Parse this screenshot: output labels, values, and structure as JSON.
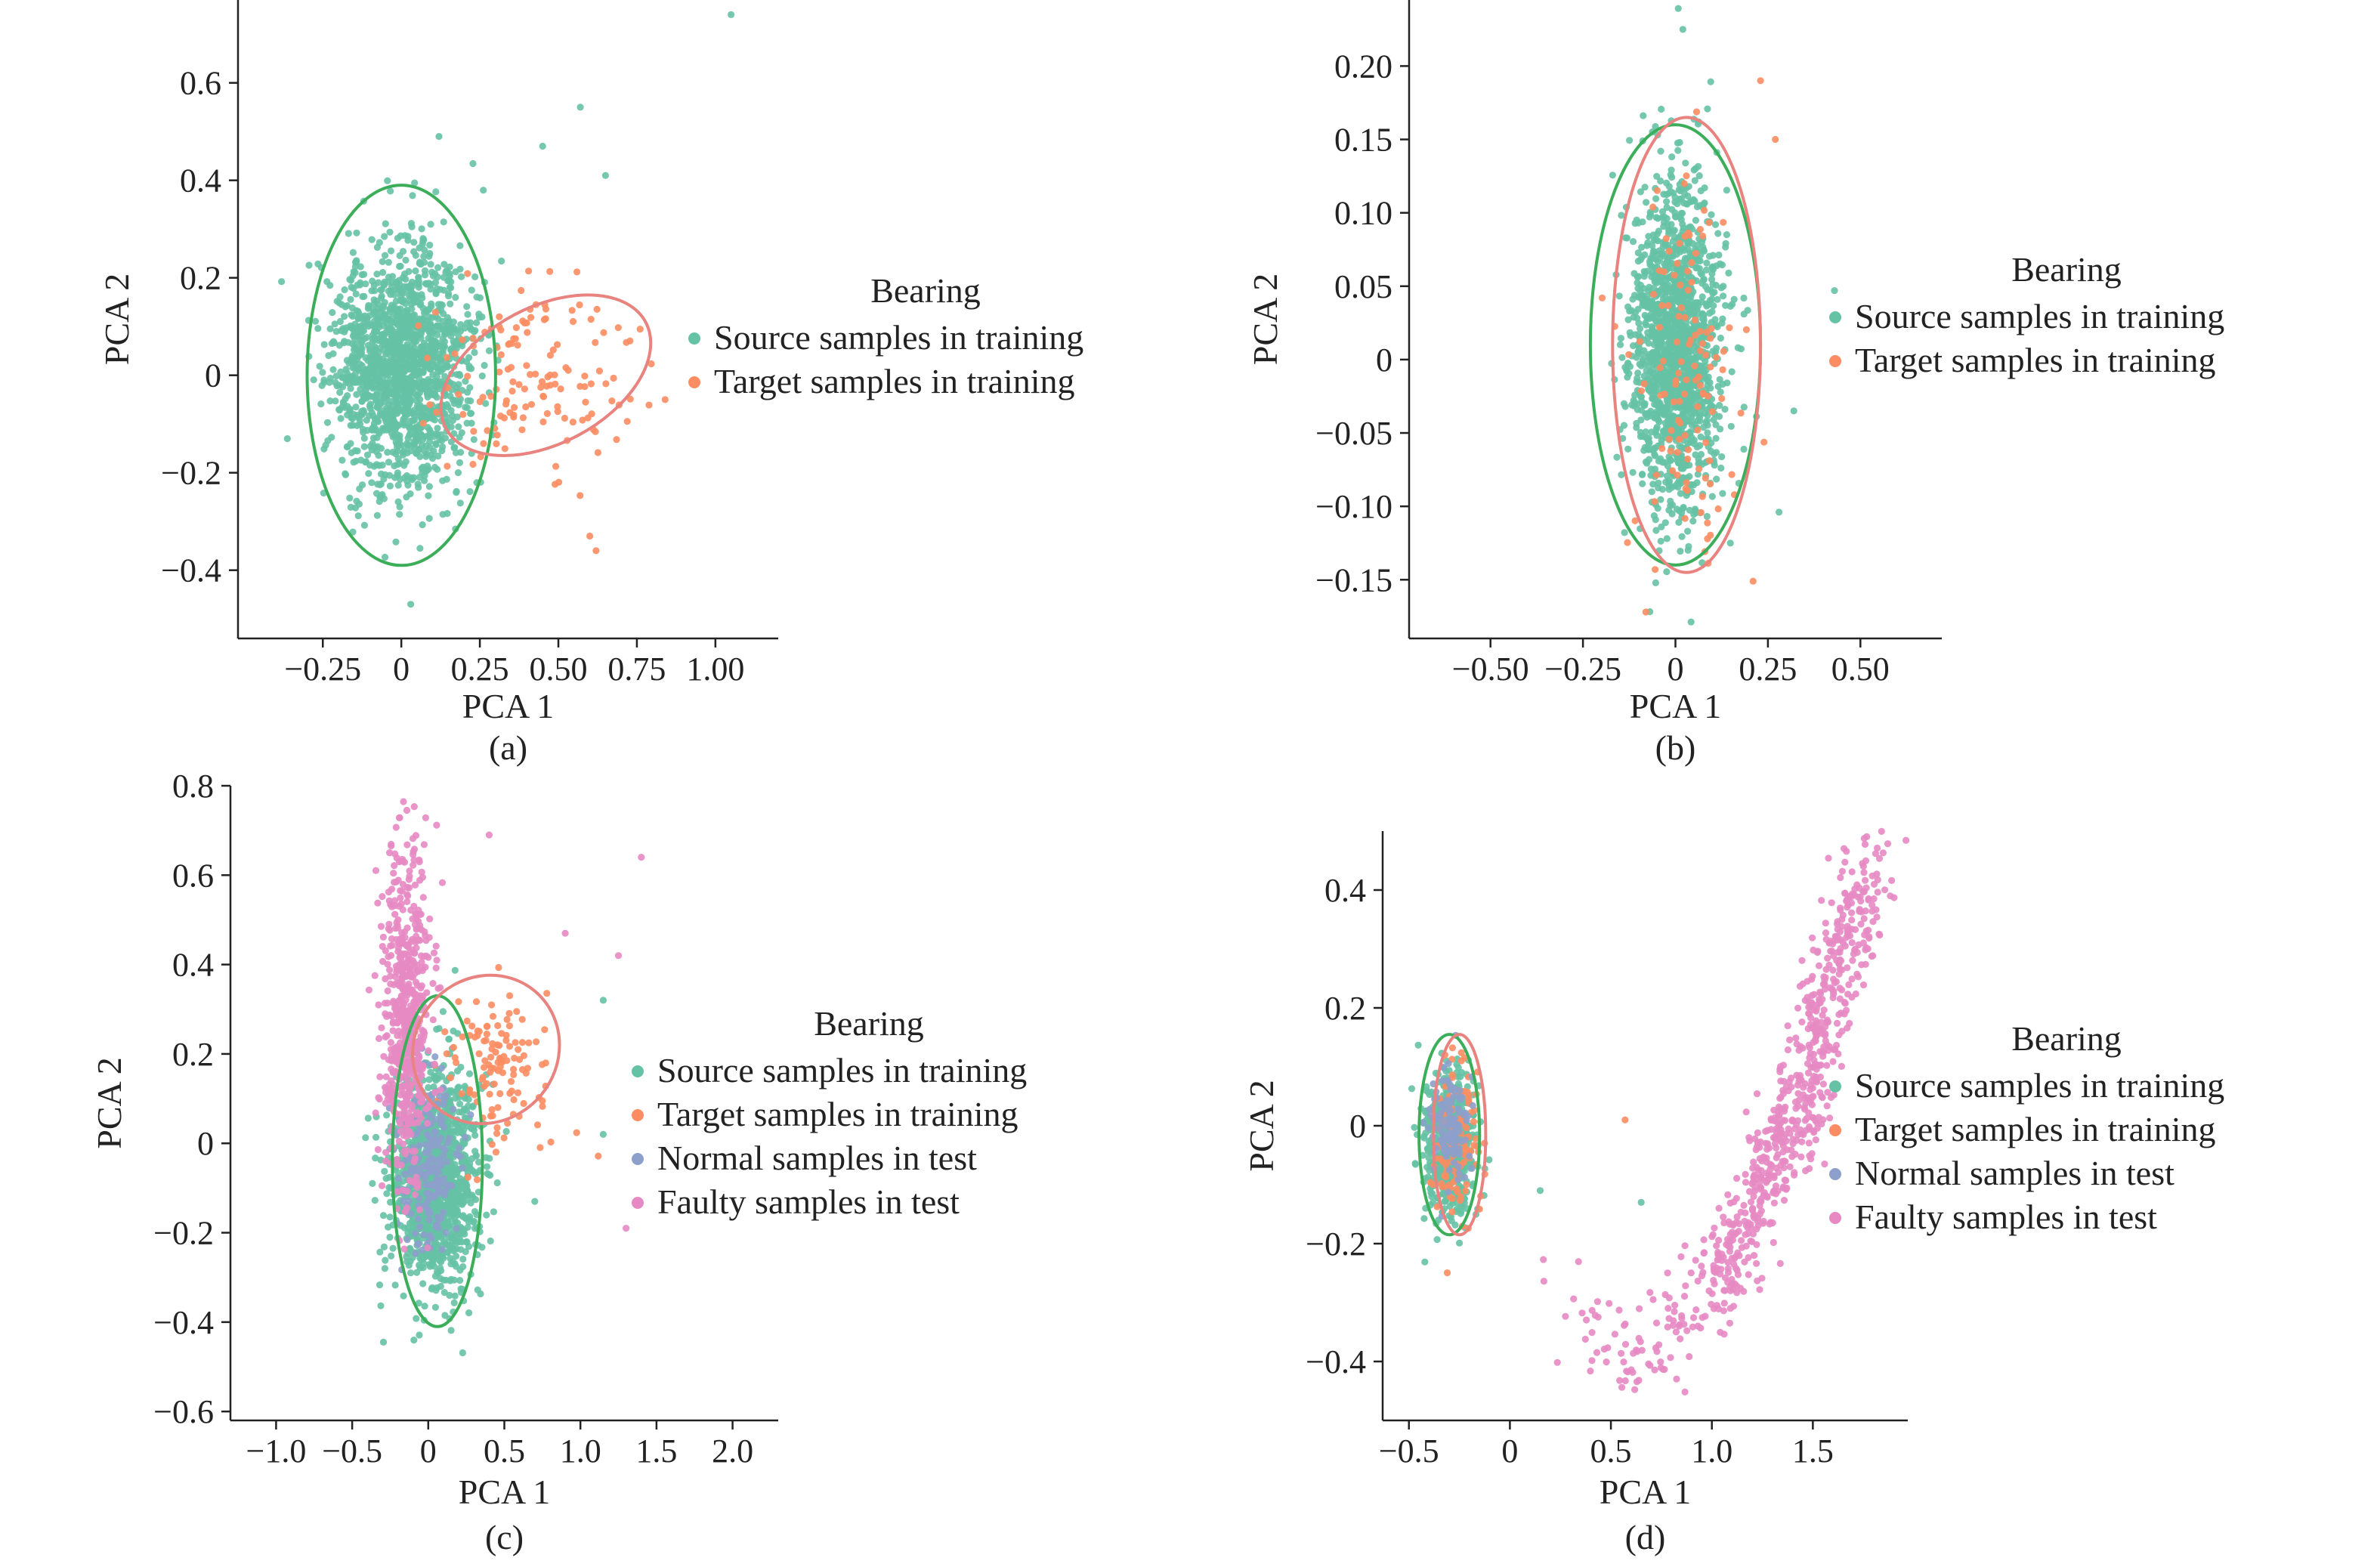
{
  "figure": {
    "colors": {
      "source": "#66c2a5",
      "target": "#fc8d62",
      "normal": "#8da0cb",
      "faulty": "#e78ac3",
      "source_ellipse": "#3cae5a",
      "target_ellipse": "#e8837f",
      "axis": "#222222"
    },
    "font_note": ""
  },
  "chart_data": [
    {
      "id": "a",
      "type": "scatter",
      "caption": "(a)",
      "xlabel": "PCA 1",
      "ylabel": "PCA 2",
      "xlim": [
        -0.52,
        1.2
      ],
      "ylim": [
        -0.54,
        0.77
      ],
      "xticks": [
        -0.25,
        0,
        0.25,
        0.5,
        0.75,
        1.0
      ],
      "xtick_labels": [
        "−0.25",
        "0",
        "0.25",
        "0.50",
        "0.75",
        "1.00"
      ],
      "yticks": [
        -0.4,
        -0.2,
        0,
        0.2,
        0.4,
        0.6
      ],
      "ytick_labels": [
        "−0.4",
        "−0.2",
        "0",
        "0.2",
        "0.4",
        "0.6"
      ],
      "legend": {
        "title": "Bearing",
        "entries": [
          "Source samples in training",
          "Target samples in training"
        ],
        "placement": "right"
      },
      "series": [
        {
          "name": "Source samples in training",
          "color_key": "source",
          "center": [
            0.0,
            0.02
          ],
          "spread": [
            0.11,
            0.12
          ],
          "count": 1600,
          "seed": 11
        },
        {
          "name": "Target samples in training",
          "color_key": "target",
          "center": [
            0.42,
            0.0
          ],
          "spread": [
            0.16,
            0.09
          ],
          "count": 140,
          "seed": 12
        }
      ],
      "outliers": [
        {
          "series": 0,
          "x": 1.05,
          "y": 0.74
        },
        {
          "series": 0,
          "x": 0.57,
          "y": 0.55
        },
        {
          "series": 0,
          "x": 0.65,
          "y": 0.41
        },
        {
          "series": 0,
          "x": 0.12,
          "y": 0.49
        },
        {
          "series": 0,
          "x": 0.45,
          "y": 0.47
        },
        {
          "series": 0,
          "x": 0.03,
          "y": -0.47
        },
        {
          "series": 1,
          "x": 0.62,
          "y": -0.36
        },
        {
          "series": 1,
          "x": 0.6,
          "y": -0.33
        },
        {
          "series": 1,
          "x": 0.84,
          "y": -0.05
        }
      ],
      "ellipses": [
        {
          "color_key": "source_ellipse",
          "cx": 0.0,
          "cy": 0.0,
          "rx": 0.3,
          "ry": 0.39,
          "angle": 0
        },
        {
          "color_key": "target_ellipse",
          "cx": 0.46,
          "cy": 0.0,
          "rx": 0.36,
          "ry": 0.14,
          "angle": 28
        }
      ]
    },
    {
      "id": "b",
      "type": "scatter",
      "caption": "(b)",
      "xlabel": "PCA 1",
      "ylabel": "PCA 2",
      "xlim": [
        -0.72,
        0.72
      ],
      "ylim": [
        -0.19,
        0.245
      ],
      "xticks": [
        -0.5,
        -0.25,
        0,
        0.25,
        0.5
      ],
      "xtick_labels": [
        "−0.50",
        "−0.25",
        "0",
        "0.25",
        "0.50"
      ],
      "yticks": [
        -0.15,
        -0.1,
        -0.05,
        0,
        0.05,
        0.1,
        0.15,
        0.2
      ],
      "ytick_labels": [
        "−0.15",
        "−0.10",
        "−0.05",
        "0",
        "0.05",
        "0.10",
        "0.15",
        "0.20"
      ],
      "legend": {
        "title": "Bearing",
        "entries": [
          "Source samples in training",
          "Target samples in training"
        ],
        "placement": "right"
      },
      "series": [
        {
          "name": "Source samples in training",
          "color_key": "source",
          "center": [
            0.0,
            0.01
          ],
          "spread": [
            0.06,
            0.055
          ],
          "count": 1600,
          "seed": 21
        },
        {
          "name": "Target samples in training",
          "color_key": "target",
          "center": [
            0.02,
            0.0
          ],
          "spread": [
            0.07,
            0.06
          ],
          "count": 120,
          "seed": 22
        }
      ],
      "outliers": [
        {
          "series": 0,
          "x": 0.02,
          "y": 0.225
        },
        {
          "series": 0,
          "x": 0.43,
          "y": 0.047
        },
        {
          "series": 0,
          "x": 0.32,
          "y": -0.035
        },
        {
          "series": 0,
          "x": 0.28,
          "y": -0.104
        },
        {
          "series": 1,
          "x": 0.23,
          "y": 0.19
        },
        {
          "series": 1,
          "x": 0.27,
          "y": 0.15
        },
        {
          "series": 1,
          "x": 0.21,
          "y": -0.151
        },
        {
          "series": 1,
          "x": -0.08,
          "y": -0.172
        }
      ],
      "ellipses": [
        {
          "color_key": "source_ellipse",
          "cx": 0.0,
          "cy": 0.01,
          "rx": 0.23,
          "ry": 0.15,
          "angle": 0
        },
        {
          "color_key": "target_ellipse",
          "cx": 0.03,
          "cy": 0.01,
          "rx": 0.2,
          "ry": 0.155,
          "angle": 0
        }
      ]
    },
    {
      "id": "c",
      "type": "scatter",
      "caption": "(c)",
      "xlabel": "PCA 1",
      "ylabel": "PCA 2",
      "xlim": [
        -1.3,
        2.3
      ],
      "ylim": [
        -0.62,
        0.8
      ],
      "xticks": [
        -1.0,
        -0.5,
        0,
        0.5,
        1.0,
        1.5,
        2.0
      ],
      "xtick_labels": [
        "−1.0",
        "−0.5",
        "0",
        "0.5",
        "1.0",
        "1.5",
        "2.0"
      ],
      "yticks": [
        -0.6,
        -0.4,
        -0.2,
        0,
        0.2,
        0.4,
        0.6,
        0.8
      ],
      "ytick_labels": [
        "−0.6",
        "−0.4",
        "−0.2",
        "0",
        "0.2",
        "0.4",
        "0.6",
        "0.8"
      ],
      "legend": {
        "title": "Bearing",
        "entries": [
          "Source samples in training",
          "Target samples in training",
          "Normal samples in test",
          "Faulty samples in test"
        ],
        "placement": "right"
      },
      "series": [
        {
          "name": "Source samples in training",
          "color_key": "source",
          "center": [
            0.05,
            -0.08
          ],
          "spread": [
            0.14,
            0.12
          ],
          "count": 1300,
          "seed": 31
        },
        {
          "name": "Target samples in training",
          "color_key": "target",
          "center": [
            0.45,
            0.18
          ],
          "spread": [
            0.18,
            0.09
          ],
          "count": 120,
          "seed": 32
        },
        {
          "name": "Normal samples in test",
          "color_key": "normal",
          "center": [
            0.0,
            -0.05
          ],
          "spread": [
            0.1,
            0.1
          ],
          "count": 200,
          "seed": 33
        },
        {
          "name": "Faulty samples in test",
          "color_key": "faulty",
          "center": [
            -0.15,
            0.28
          ],
          "spread": [
            0.08,
            0.18
          ],
          "count": 600,
          "seed": 34
        }
      ],
      "outliers": [
        {
          "series": 3,
          "x": 1.4,
          "y": 0.64
        },
        {
          "series": 3,
          "x": 1.25,
          "y": 0.42
        },
        {
          "series": 3,
          "x": 1.3,
          "y": -0.19
        },
        {
          "series": 3,
          "x": 0.4,
          "y": 0.69
        },
        {
          "series": 3,
          "x": 0.9,
          "y": 0.47
        },
        {
          "series": 0,
          "x": 1.15,
          "y": 0.32
        },
        {
          "series": 0,
          "x": 1.15,
          "y": 0.02
        },
        {
          "series": 0,
          "x": 0.7,
          "y": -0.13
        }
      ],
      "ellipses": [
        {
          "color_key": "source_ellipse",
          "cx": 0.06,
          "cy": -0.04,
          "rx": 0.37,
          "ry": 0.37,
          "angle": 0,
          "rx_scale": 0.8
        },
        {
          "color_key": "target_ellipse",
          "cx": 0.38,
          "cy": 0.21,
          "rx": 0.5,
          "ry": 0.16,
          "angle": 50
        }
      ]
    },
    {
      "id": "d",
      "type": "scatter",
      "caption": "(d)",
      "xlabel": "PCA 1",
      "ylabel": "PCA 2",
      "xlim": [
        -0.63,
        1.97
      ],
      "ylim": [
        -0.5,
        0.5
      ],
      "xticks": [
        -0.5,
        0,
        0.5,
        1.0,
        1.5
      ],
      "xtick_labels": [
        "−0.5",
        "0",
        "0.5",
        "1.0",
        "1.5"
      ],
      "yticks": [
        -0.4,
        -0.2,
        0,
        0.2,
        0.4
      ],
      "ytick_labels": [
        "−0.4",
        "−0.2",
        "0",
        "0.2",
        "0.4"
      ],
      "legend": {
        "title": "Bearing",
        "entries": [
          "Source samples in training",
          "Target samples in training",
          "Normal samples in test",
          "Faulty samples in test"
        ],
        "placement": "right"
      },
      "series": [
        {
          "name": "Source samples in training",
          "color_key": "source",
          "center": [
            -0.3,
            -0.03
          ],
          "spread": [
            0.06,
            0.06
          ],
          "count": 600,
          "seed": 41
        },
        {
          "name": "Target samples in training",
          "color_key": "target",
          "center": [
            -0.27,
            -0.02
          ],
          "spread": [
            0.06,
            0.07
          ],
          "count": 120,
          "seed": 42
        },
        {
          "name": "Normal samples in test",
          "color_key": "normal",
          "center": [
            -0.3,
            -0.01
          ],
          "spread": [
            0.05,
            0.05
          ],
          "count": 120,
          "seed": 43
        }
      ],
      "curve_series": {
        "name": "Faulty samples in test",
        "color_key": "faulty",
        "count": 760,
        "seed": 44,
        "path": [
          [
            0.2,
            -0.3
          ],
          [
            0.6,
            -0.4
          ],
          [
            1.0,
            -0.28
          ],
          [
            1.25,
            -0.12
          ],
          [
            1.45,
            0.05
          ],
          [
            1.6,
            0.25
          ],
          [
            1.78,
            0.45
          ]
        ],
        "weights": [
          0.05,
          0.08,
          0.18,
          0.25,
          0.22,
          0.14,
          0.08
        ],
        "jitter": [
          0.07,
          0.045
        ]
      },
      "outliers": [
        {
          "series": 1,
          "x": 0.57,
          "y": 0.01
        },
        {
          "series": 0,
          "x": 0.15,
          "y": -0.11
        },
        {
          "series": 0,
          "x": 0.65,
          "y": -0.13
        }
      ],
      "ellipses": [
        {
          "color_key": "source_ellipse",
          "cx": -0.3,
          "cy": -0.015,
          "rx": 0.15,
          "ry": 0.17,
          "angle": 0
        },
        {
          "color_key": "target_ellipse",
          "cx": -0.25,
          "cy": -0.015,
          "rx": 0.13,
          "ry": 0.17,
          "angle": 0
        }
      ]
    }
  ]
}
